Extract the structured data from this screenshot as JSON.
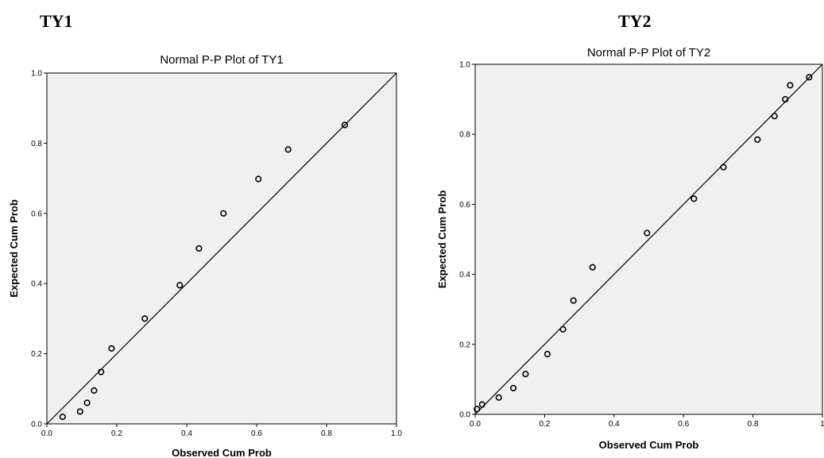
{
  "headings": {
    "left": "TY1",
    "right": "TY2"
  },
  "chart_data": [
    {
      "type": "scatter",
      "title": "Normal P-P Plot of TY1",
      "xlabel": "Observed Cum Prob",
      "ylabel": "Expected Cum Prob",
      "xlim": [
        0,
        1
      ],
      "ylim": [
        0,
        1
      ],
      "xticks": [
        "0.0",
        "0.2",
        "0.4",
        "0.6",
        "0.8",
        "1.0"
      ],
      "yticks": [
        "0.0",
        "0.2",
        "0.4",
        "0.6",
        "0.8",
        "1.0"
      ],
      "reference_line": [
        [
          0,
          0
        ],
        [
          1,
          1
        ]
      ],
      "background": "#f0f0f0",
      "points": [
        [
          0.045,
          0.02
        ],
        [
          0.095,
          0.035
        ],
        [
          0.115,
          0.06
        ],
        [
          0.135,
          0.095
        ],
        [
          0.155,
          0.148
        ],
        [
          0.185,
          0.215
        ],
        [
          0.28,
          0.3
        ],
        [
          0.38,
          0.395
        ],
        [
          0.435,
          0.5
        ],
        [
          0.505,
          0.6
        ],
        [
          0.605,
          0.698
        ],
        [
          0.69,
          0.782
        ],
        [
          0.852,
          0.852
        ]
      ]
    },
    {
      "type": "scatter",
      "title": "Normal P-P Plot of TY2",
      "xlabel": "Observed Cum Prob",
      "ylabel": "Expected Cum Prob",
      "xlim": [
        0,
        1
      ],
      "ylim": [
        0,
        1
      ],
      "xticks": [
        "0.0",
        "0.2",
        "0.4",
        "0.6",
        "0.8",
        "1"
      ],
      "yticks": [
        "0.0",
        "0.2",
        "0.4",
        "0.6",
        "0.8",
        "1.0"
      ],
      "reference_line": [
        [
          0,
          0
        ],
        [
          1,
          1
        ]
      ],
      "background": "#f0f0f0",
      "points": [
        [
          0.005,
          0.015
        ],
        [
          0.02,
          0.028
        ],
        [
          0.068,
          0.048
        ],
        [
          0.11,
          0.075
        ],
        [
          0.145,
          0.115
        ],
        [
          0.208,
          0.172
        ],
        [
          0.253,
          0.243
        ],
        [
          0.283,
          0.325
        ],
        [
          0.338,
          0.42
        ],
        [
          0.495,
          0.518
        ],
        [
          0.63,
          0.616
        ],
        [
          0.715,
          0.706
        ],
        [
          0.813,
          0.785
        ],
        [
          0.862,
          0.852
        ],
        [
          0.893,
          0.9
        ],
        [
          0.907,
          0.94
        ],
        [
          0.962,
          0.963
        ]
      ]
    }
  ]
}
